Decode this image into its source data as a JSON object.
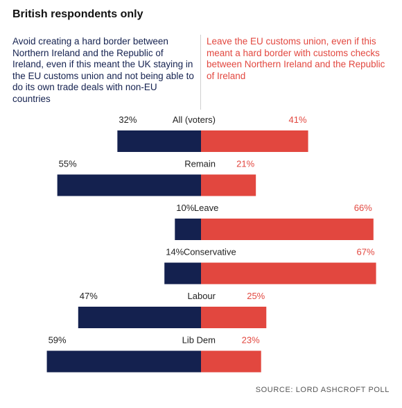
{
  "header": {
    "title": "British respondents only"
  },
  "legend": {
    "left_text": "Avoid creating a hard border between Northern Ireland and the Republic of Ireland, even if this meant the UK staying in the EU customs union and not being able to do its own trade deals with non-EU countries",
    "right_text": "Leave the EU customs union, even if this meant a hard border with customs checks between Northern Ireland and the Republic of Ireland"
  },
  "source": "SOURCE: LORD ASHCROFT POLL",
  "colors": {
    "left": "#14214f",
    "right": "#e2473f"
  },
  "chart_data": {
    "type": "bar",
    "orientation": "diverging-horizontal",
    "categories": [
      "All (voters)",
      "Remain",
      "Leave",
      "Conservative",
      "Labour",
      "Lib Dem"
    ],
    "series": [
      {
        "values": [
          32,
          55,
          10,
          14,
          47,
          59
        ]
      },
      {
        "values": [
          41,
          21,
          66,
          67,
          25,
          23
        ]
      }
    ],
    "unit": "%"
  }
}
